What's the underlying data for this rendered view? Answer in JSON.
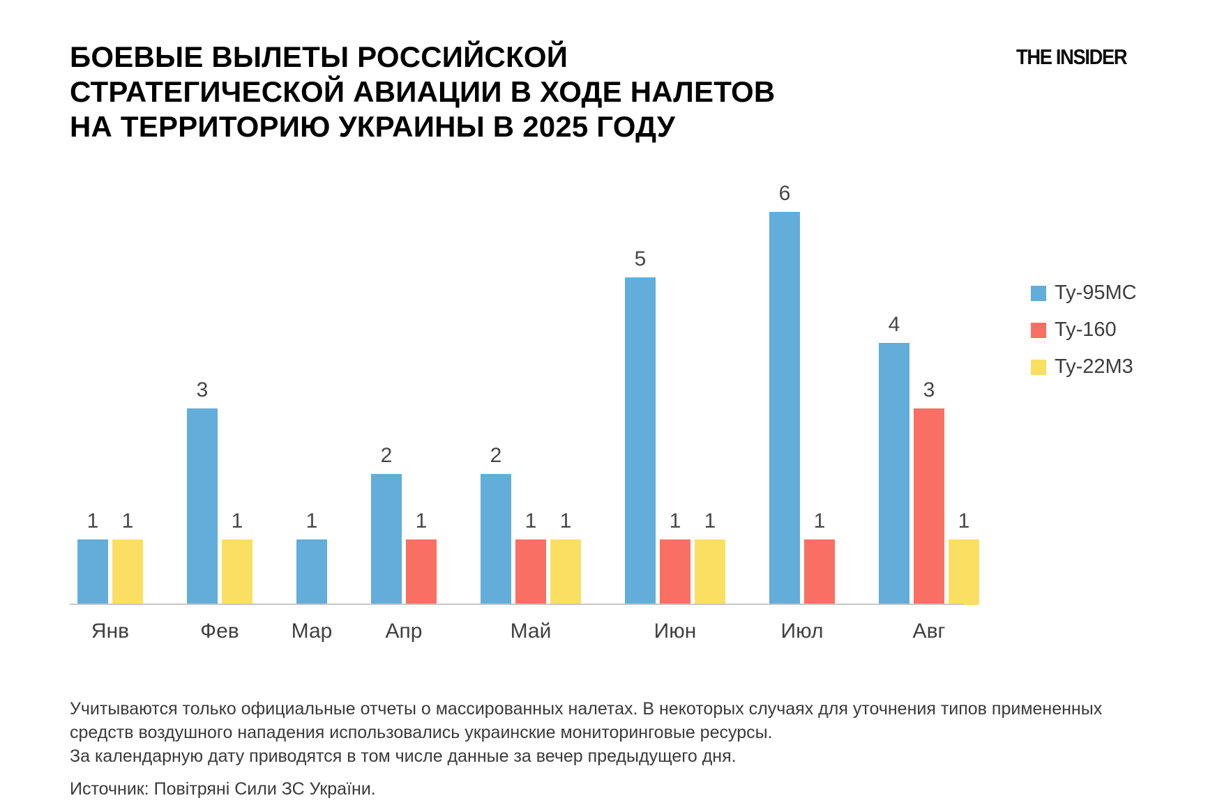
{
  "header": {
    "title_lines": [
      "БОЕВЫЕ ВЫЛЕТЫ РОССИЙСКОЙ",
      "СТРАТЕГИЧЕСКОЙ АВИАЦИИ В ХОДЕ НАЛЕТОВ",
      "НА ТЕРРИТОРИЮ УКРАИНЫ В 2025 ГОДУ"
    ],
    "logo": "THE INSIDER"
  },
  "chart_data": {
    "type": "bar",
    "title": "Боевые вылеты российской стратегической авиации в ходе налетов на территорию Украины в 2025 году",
    "categories": [
      "Янв",
      "Фев",
      "Мар",
      "Апр",
      "Май",
      "Июн",
      "Июл",
      "Авг"
    ],
    "series": [
      {
        "name": "Ту-95МС",
        "color": "#62ADD9",
        "values": [
          1,
          3,
          1,
          2,
          2,
          5,
          6,
          4
        ]
      },
      {
        "name": "Ту-160",
        "color": "#FA6F63",
        "values": [
          0,
          0,
          0,
          1,
          1,
          1,
          1,
          3
        ]
      },
      {
        "name": "Ту-22М3",
        "color": "#FBDF63",
        "values": [
          1,
          1,
          0,
          0,
          1,
          1,
          0,
          1
        ]
      }
    ],
    "ylim": [
      0,
      6
    ],
    "value_labels": true,
    "zero_bars_hidden": true,
    "grid": false,
    "legend_position": "right",
    "xlabel": "",
    "ylabel": ""
  },
  "footer": {
    "note1": "Учитываются только официальные отчеты о массированных налетах. В некоторых случаях для уточнения типов примененных средств воздушного нападения использовались украинские мониторинговые ресурсы.",
    "note2": "За календарную дату приводятся в том числе данные за вечер предыдущего дня.",
    "source": "Источник: Повітряні Сили ЗС України."
  }
}
